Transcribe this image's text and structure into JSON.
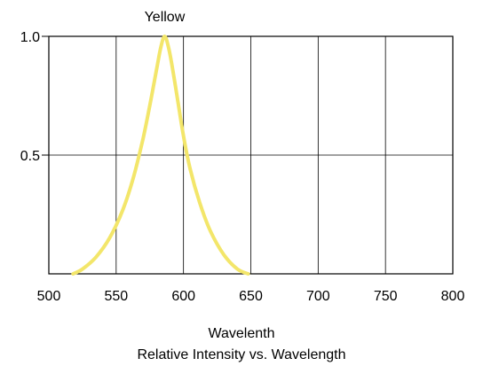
{
  "chart_data": {
    "type": "line",
    "title": "Relative Intensity vs. Wavelength",
    "xlabel": "Wavelenth",
    "ylabel": "",
    "xlim": [
      500,
      800
    ],
    "ylim": [
      0,
      1.0
    ],
    "x_ticks": [
      "500",
      "550",
      "600",
      "650",
      "700",
      "750",
      "800"
    ],
    "y_ticks": [
      "0.5",
      "1.0"
    ],
    "y_tick_values": [
      0.5,
      1.0
    ],
    "grid": true,
    "series": [
      {
        "name": "Yellow",
        "color": "#f3e66a",
        "x": [
          518,
          525,
          535,
          545,
          555,
          563,
          570,
          575,
          580,
          583,
          586,
          589,
          592,
          596,
          600,
          605,
          612,
          620,
          630,
          640,
          648
        ],
        "y": [
          0.0,
          0.02,
          0.07,
          0.15,
          0.27,
          0.41,
          0.57,
          0.71,
          0.86,
          0.95,
          1.0,
          0.95,
          0.86,
          0.72,
          0.58,
          0.44,
          0.3,
          0.18,
          0.08,
          0.02,
          0.0
        ]
      }
    ]
  }
}
